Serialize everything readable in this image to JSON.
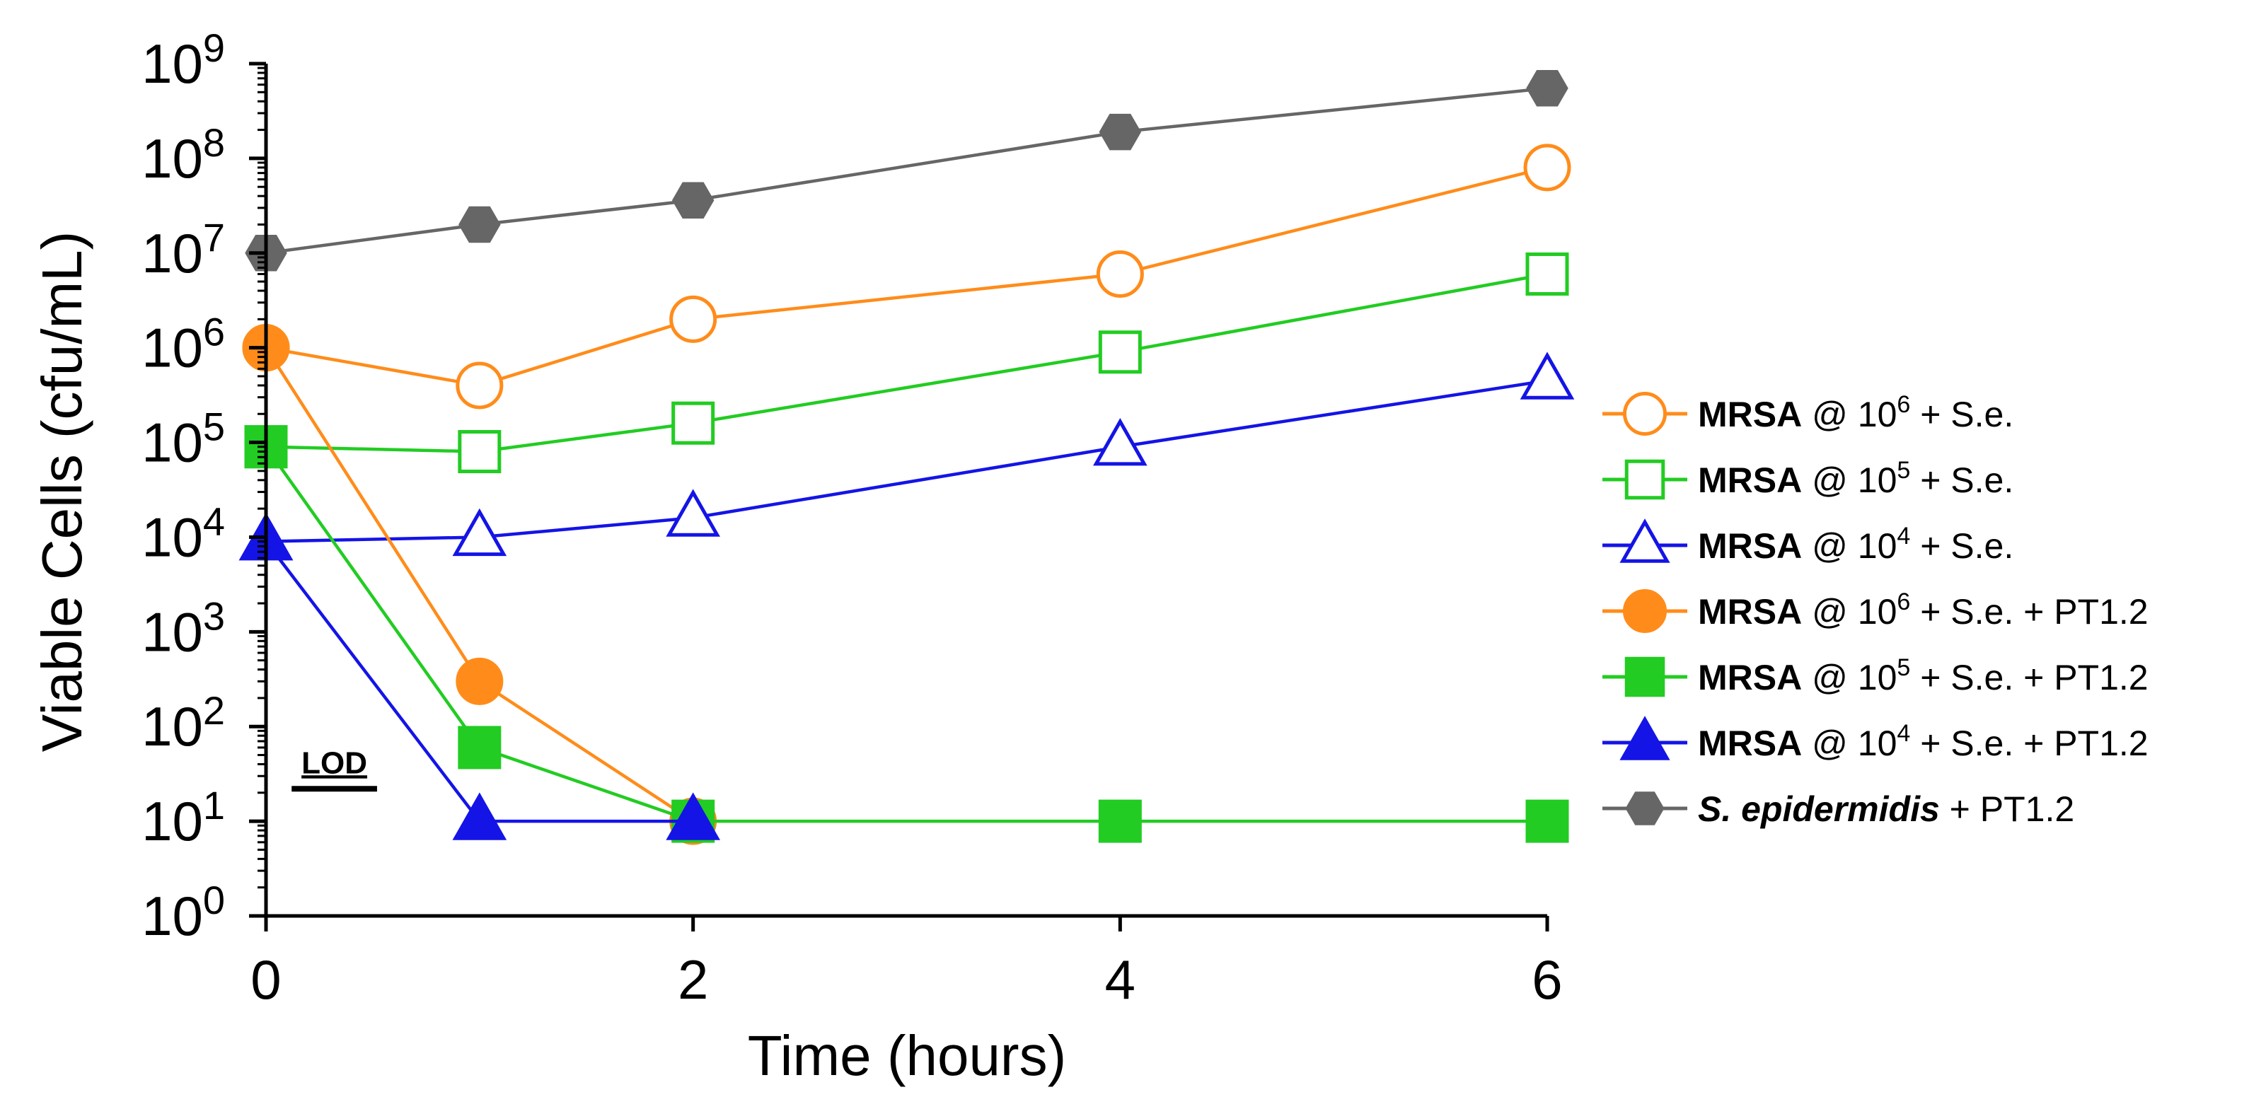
{
  "chart_data": {
    "type": "line",
    "title": "",
    "xlabel": "Time (hours)",
    "ylabel": "Viable Cells (cfu/mL)",
    "xlim": [
      0,
      6
    ],
    "ylim": [
      1,
      1000000000
    ],
    "yscale": "log",
    "x_ticks": [
      {
        "value": 0,
        "label": "0"
      },
      {
        "value": 2,
        "label": "2"
      },
      {
        "value": 4,
        "label": "4"
      },
      {
        "value": 6,
        "label": "6"
      }
    ],
    "y_ticks": [
      {
        "exp": 0,
        "base": "10",
        "sup": "0"
      },
      {
        "exp": 1,
        "base": "10",
        "sup": "1"
      },
      {
        "exp": 2,
        "base": "10",
        "sup": "2"
      },
      {
        "exp": 3,
        "base": "10",
        "sup": "3"
      },
      {
        "exp": 4,
        "base": "10",
        "sup": "4"
      },
      {
        "exp": 5,
        "base": "10",
        "sup": "5"
      },
      {
        "exp": 6,
        "base": "10",
        "sup": "6"
      },
      {
        "exp": 7,
        "base": "10",
        "sup": "7"
      },
      {
        "exp": 8,
        "base": "10",
        "sup": "8"
      },
      {
        "exp": 9,
        "base": "10",
        "sup": "9"
      }
    ],
    "annotation": {
      "text": "LOD",
      "x_start": 0.12,
      "x_end": 0.52,
      "y": 22
    },
    "legend_position": "right",
    "series": [
      {
        "name": "MRSA @ 10^6 + S.e.",
        "legend": [
          {
            "t": "MRSA",
            "b": true
          },
          {
            "t": " @ 10"
          },
          {
            "t": "6",
            "sup": true
          },
          {
            "t": " + S.e."
          }
        ],
        "color": "#ff8c1a",
        "marker": "circle",
        "filled": false,
        "x": [
          0,
          1,
          2,
          4,
          6
        ],
        "y": [
          1000000,
          400000,
          2000000,
          6000000,
          80000000
        ]
      },
      {
        "name": "MRSA @ 10^5 + S.e.",
        "legend": [
          {
            "t": "MRSA",
            "b": true
          },
          {
            "t": " @ 10"
          },
          {
            "t": "5",
            "sup": true
          },
          {
            "t": " + S.e."
          }
        ],
        "color": "#22cc22",
        "marker": "square",
        "filled": false,
        "x": [
          0,
          1,
          2,
          4,
          6
        ],
        "y": [
          90000,
          80000,
          160000,
          900000,
          6000000
        ]
      },
      {
        "name": "MRSA @ 10^4 + S.e.",
        "legend": [
          {
            "t": "MRSA",
            "b": true
          },
          {
            "t": " @ 10"
          },
          {
            "t": "4",
            "sup": true
          },
          {
            "t": " + S.e."
          }
        ],
        "color": "#1414e6",
        "marker": "triangle",
        "filled": false,
        "x": [
          0,
          1,
          2,
          4,
          6
        ],
        "y": [
          9000,
          10000,
          16000,
          90000,
          450000
        ]
      },
      {
        "name": "MRSA @ 10^6 + S.e. + PT1.2",
        "legend": [
          {
            "t": "MRSA",
            "b": true
          },
          {
            "t": " @ 10"
          },
          {
            "t": "6",
            "sup": true
          },
          {
            "t": " + S.e. + PT1.2"
          }
        ],
        "color": "#ff8c1a",
        "marker": "circle",
        "filled": true,
        "x": [
          0,
          1,
          2
        ],
        "y": [
          1000000,
          300,
          10
        ]
      },
      {
        "name": "MRSA @ 10^5 + S.e. + PT1.2",
        "legend": [
          {
            "t": "MRSA",
            "b": true
          },
          {
            "t": " @ 10"
          },
          {
            "t": "5",
            "sup": true
          },
          {
            "t": " + S.e. + PT1.2"
          }
        ],
        "color": "#22cc22",
        "marker": "square",
        "filled": true,
        "x": [
          0,
          1,
          2,
          4,
          6
        ],
        "y": [
          90000,
          60,
          10,
          10,
          10
        ]
      },
      {
        "name": "MRSA @ 10^4 + S.e. + PT1.2",
        "legend": [
          {
            "t": "MRSA",
            "b": true
          },
          {
            "t": " @ 10"
          },
          {
            "t": "4",
            "sup": true
          },
          {
            "t": " + S.e. + PT1.2"
          }
        ],
        "color": "#1414e6",
        "marker": "triangle",
        "filled": true,
        "x": [
          0,
          1,
          2
        ],
        "y": [
          9000,
          10,
          10
        ]
      },
      {
        "name": "S. epidermidis + PT1.2",
        "legend": [
          {
            "t": "S. epidermidis",
            "b": true,
            "i": true
          },
          {
            "t": " + PT1.2"
          }
        ],
        "color": "#666666",
        "marker": "hexagon",
        "filled": true,
        "x": [
          0,
          1,
          2,
          4,
          6
        ],
        "y": [
          10000000,
          20000000,
          36000000,
          190000000,
          550000000
        ]
      }
    ]
  }
}
